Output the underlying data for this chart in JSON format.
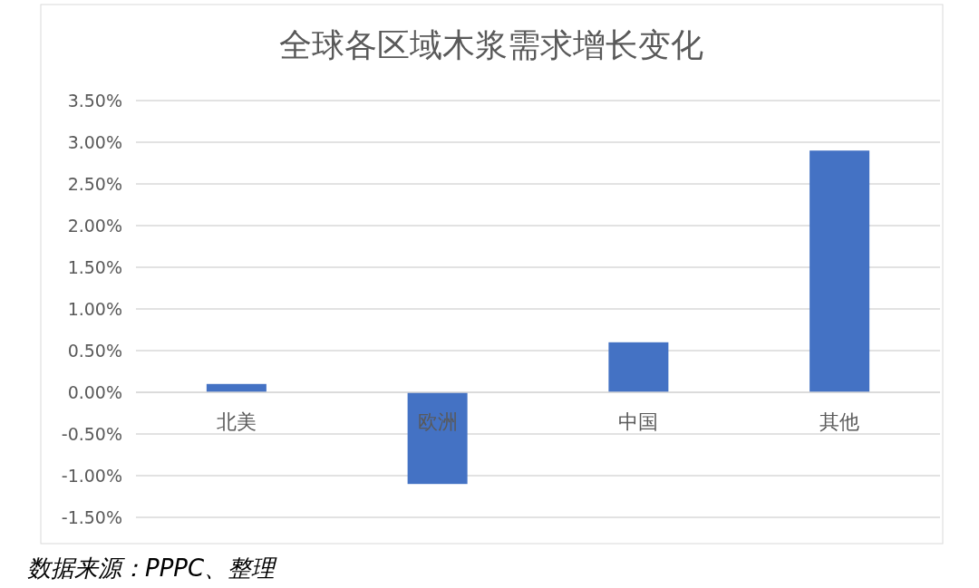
{
  "chart_data": {
    "type": "bar",
    "title": "全球各区域木浆需求增长变化",
    "categories": [
      "北美",
      "欧洲",
      "中国",
      "其他"
    ],
    "values": [
      0.1,
      -1.1,
      0.6,
      2.9
    ],
    "color": "#4472c4",
    "ylim": [
      -1.5,
      3.5
    ],
    "yticks": [
      {
        "value": -1.5,
        "label": "-1.50%"
      },
      {
        "value": -1.0,
        "label": "-1.00%"
      },
      {
        "value": -0.5,
        "label": "-0.50%"
      },
      {
        "value": 0,
        "label": "0.00%"
      },
      {
        "value": 0.5,
        "label": "0.50%"
      },
      {
        "value": 1.0,
        "label": "1.00%"
      },
      {
        "value": 1.5,
        "label": "1.50%"
      },
      {
        "value": 2.0,
        "label": "2.00%"
      },
      {
        "value": 2.5,
        "label": "2.50%"
      },
      {
        "value": 3.0,
        "label": "3.00%"
      },
      {
        "value": 3.5,
        "label": "3.50%"
      }
    ],
    "grid": "y",
    "annotations": [
      "数据来源：PPPC、整理"
    ]
  }
}
